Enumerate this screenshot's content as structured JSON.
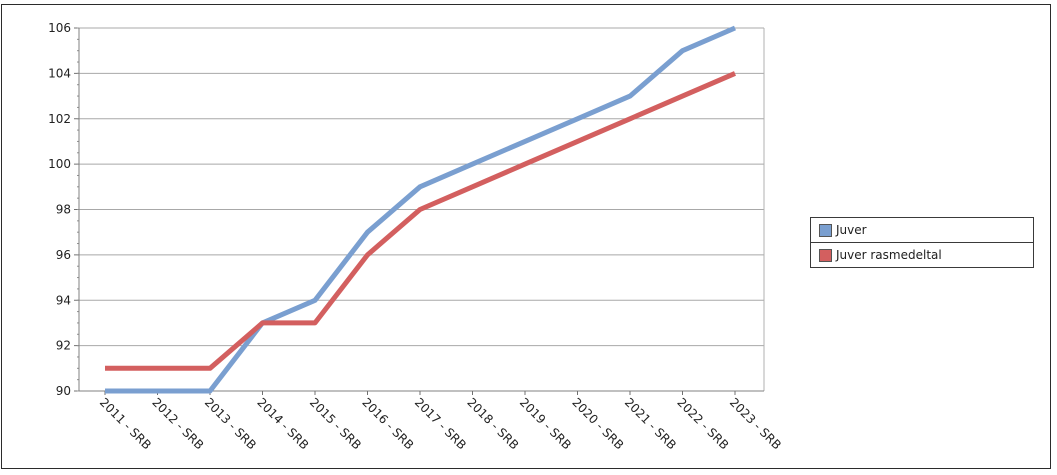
{
  "chart_data": {
    "type": "line",
    "title": "",
    "xlabel": "",
    "ylabel": "",
    "ylim": [
      90,
      106
    ],
    "yticks": [
      "90",
      "92",
      "94",
      "96",
      "98",
      "100",
      "102",
      "104",
      "106"
    ],
    "categories": [
      "2011 - SRB",
      "2012 - SRB",
      "2013 - SRB",
      "2014 - SRB",
      "2015 - SRB",
      "2016 - SRB",
      "2017 - SRB",
      "2018 - SRB",
      "2019 - SRB",
      "2020 - SRB",
      "2021 - SRB",
      "2022 - SRB",
      "2023 - SRB"
    ],
    "series": [
      {
        "name": "Juver",
        "color": "#7a9fd0",
        "values": [
          90,
          90,
          90,
          93,
          94,
          97,
          99,
          100,
          101,
          102,
          103,
          105,
          106
        ]
      },
      {
        "name": "Juver rasmedeltal",
        "color": "#d35f5f",
        "values": [
          91,
          91,
          91,
          93,
          93,
          96,
          98,
          99,
          100,
          101,
          102,
          103,
          104
        ]
      }
    ],
    "grid": true,
    "legend_position": "right"
  }
}
